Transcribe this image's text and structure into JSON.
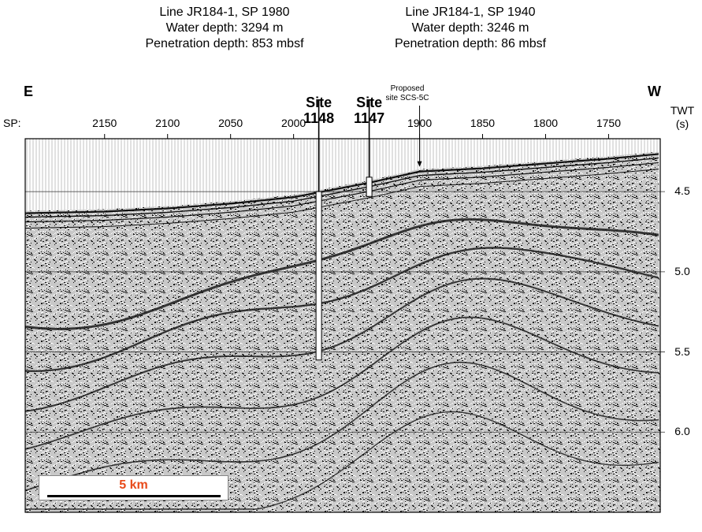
{
  "header_left": {
    "line": "Line JR184-1, SP 1980",
    "water": "Water depth: 3294 m",
    "penetration": "Penetration depth: 853 mbsf"
  },
  "header_right": {
    "line": "Line JR184-1, SP 1940",
    "water": "Water depth: 3246 m",
    "penetration": "Penetration depth: 86 mbsf"
  },
  "dir_east": "E",
  "dir_west": "W",
  "twt_label": "TWT",
  "twt_unit": "(s)",
  "sp_label": "SP:",
  "sp_ticks": [
    {
      "v": 2150,
      "label": "2150"
    },
    {
      "v": 2100,
      "label": "2100"
    },
    {
      "v": 2050,
      "label": "2050"
    },
    {
      "v": 2000,
      "label": "2000"
    },
    {
      "v": 1900,
      "label": "1900"
    },
    {
      "v": 1850,
      "label": "1850"
    },
    {
      "v": 1800,
      "label": "1800"
    },
    {
      "v": 1750,
      "label": "1750"
    }
  ],
  "sp_range": [
    2213,
    1709
  ],
  "twt_range": [
    4.17,
    6.5
  ],
  "twt_ticks": [
    {
      "v": 4.5,
      "label": "4.5"
    },
    {
      "v": 5.0,
      "label": "5.0"
    },
    {
      "v": 5.5,
      "label": "5.5"
    },
    {
      "v": 6.0,
      "label": "6.0"
    }
  ],
  "sites": [
    {
      "word": "Site",
      "number": "1148",
      "sp": 1980,
      "top": 4.5,
      "bottom": 5.55
    },
    {
      "word": "Site",
      "number": "1147",
      "sp": 1940,
      "top": 4.41,
      "bottom": 4.53
    }
  ],
  "proposed": {
    "line1": "Proposed",
    "line2": "site SCS-5C",
    "sp": 1900
  },
  "seafloor": [
    [
      2213,
      4.62
    ],
    [
      2150,
      4.61
    ],
    [
      2100,
      4.59
    ],
    [
      2050,
      4.56
    ],
    [
      2000,
      4.52
    ],
    [
      1960,
      4.46
    ],
    [
      1940,
      4.43
    ],
    [
      1900,
      4.36
    ],
    [
      1850,
      4.34
    ],
    [
      1800,
      4.31
    ],
    [
      1750,
      4.28
    ],
    [
      1709,
      4.25
    ]
  ],
  "scale": {
    "label": "5 km",
    "color": "#e84a1a"
  }
}
